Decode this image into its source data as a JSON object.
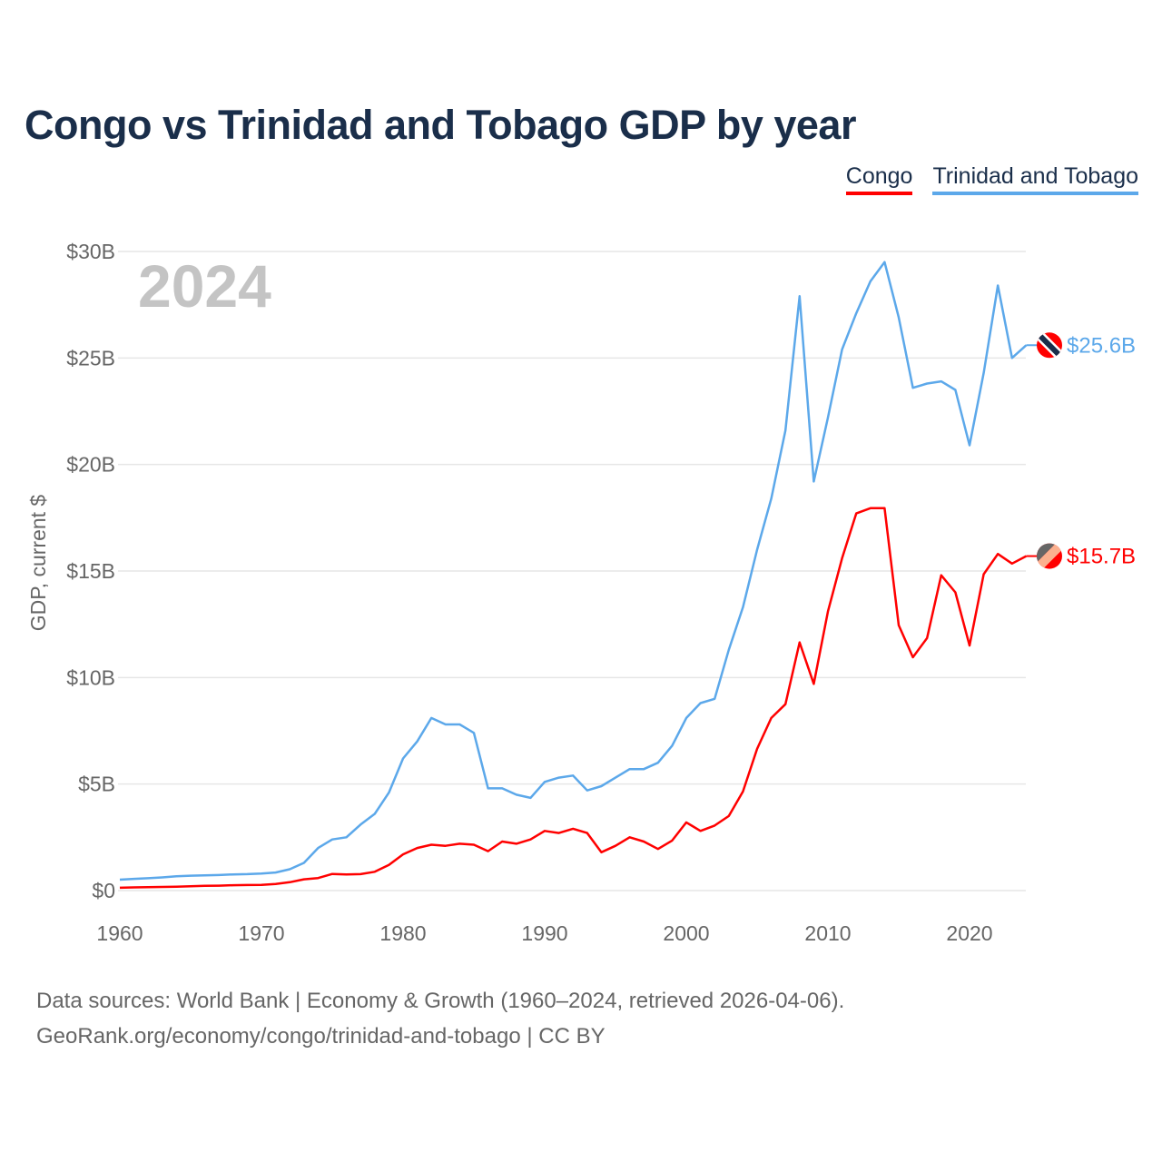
{
  "chart_data": {
    "type": "line",
    "title": "Congo vs Trinidad and Tobago GDP by year",
    "xlabel": "",
    "ylabel": "GDP, current $",
    "xlim": [
      1960,
      2024
    ],
    "ylim": [
      0,
      30
    ],
    "y_unit": "billion USD",
    "grid": true,
    "legend_position": "top-right",
    "year_watermark": "2024",
    "x_ticks": [
      1960,
      1970,
      1980,
      1990,
      2000,
      2010,
      2020
    ],
    "x_tick_labels": [
      "1960",
      "1970",
      "1980",
      "1990",
      "2000",
      "2010",
      "2020"
    ],
    "y_ticks": [
      0,
      5,
      10,
      15,
      20,
      25,
      30
    ],
    "y_tick_labels": [
      "$0",
      "$5B",
      "$10B",
      "$15B",
      "$20B",
      "$25B",
      "$30B"
    ],
    "x": [
      1960,
      1961,
      1962,
      1963,
      1964,
      1965,
      1966,
      1967,
      1968,
      1969,
      1970,
      1971,
      1972,
      1973,
      1974,
      1975,
      1976,
      1977,
      1978,
      1979,
      1980,
      1981,
      1982,
      1983,
      1984,
      1985,
      1986,
      1987,
      1988,
      1989,
      1990,
      1991,
      1992,
      1993,
      1994,
      1995,
      1996,
      1997,
      1998,
      1999,
      2000,
      2001,
      2002,
      2003,
      2004,
      2005,
      2006,
      2007,
      2008,
      2009,
      2010,
      2011,
      2012,
      2013,
      2014,
      2015,
      2016,
      2017,
      2018,
      2019,
      2020,
      2021,
      2022,
      2023,
      2024
    ],
    "series": [
      {
        "name": "Congo",
        "color": "#ff0000",
        "end_label": "$15.7B",
        "values": [
          0.13,
          0.15,
          0.16,
          0.17,
          0.18,
          0.2,
          0.22,
          0.23,
          0.25,
          0.26,
          0.27,
          0.31,
          0.39,
          0.53,
          0.59,
          0.78,
          0.76,
          0.77,
          0.88,
          1.2,
          1.7,
          2.0,
          2.15,
          2.1,
          2.2,
          2.15,
          1.85,
          2.3,
          2.2,
          2.4,
          2.8,
          2.7,
          2.9,
          2.7,
          1.8,
          2.1,
          2.5,
          2.3,
          1.95,
          2.35,
          3.2,
          2.8,
          3.05,
          3.5,
          4.65,
          6.65,
          8.1,
          8.75,
          11.65,
          9.7,
          13.1,
          15.6,
          17.7,
          17.95,
          17.95,
          12.45,
          10.95,
          11.85,
          14.8,
          14.0,
          11.5,
          14.85,
          15.8,
          15.35,
          15.7
        ]
      },
      {
        "name": "Trinidad and Tobago",
        "color": "#5ca8ea",
        "end_label": "$25.6B",
        "values": [
          0.51,
          0.55,
          0.58,
          0.62,
          0.67,
          0.7,
          0.71,
          0.73,
          0.76,
          0.77,
          0.8,
          0.85,
          1.0,
          1.3,
          2.0,
          2.4,
          2.5,
          3.1,
          3.6,
          4.6,
          6.2,
          7.0,
          8.1,
          7.8,
          7.8,
          7.4,
          4.8,
          4.8,
          4.5,
          4.35,
          5.1,
          5.3,
          5.4,
          4.7,
          4.9,
          5.3,
          5.7,
          5.7,
          6.0,
          6.8,
          8.1,
          8.8,
          9.0,
          11.3,
          13.3,
          16.0,
          18.4,
          21.6,
          27.9,
          19.2,
          22.2,
          25.4,
          27.1,
          28.6,
          29.5,
          26.9,
          23.6,
          23.8,
          23.9,
          23.5,
          20.9,
          24.3,
          28.4,
          25.0,
          25.6
        ]
      }
    ]
  },
  "footer": {
    "line1": "Data sources: World Bank | Economy & Growth (1960–2024, retrieved 2026-04-06).",
    "line2": "GeoRank.org/economy/congo/trinidad-and-tobago | CC BY"
  }
}
